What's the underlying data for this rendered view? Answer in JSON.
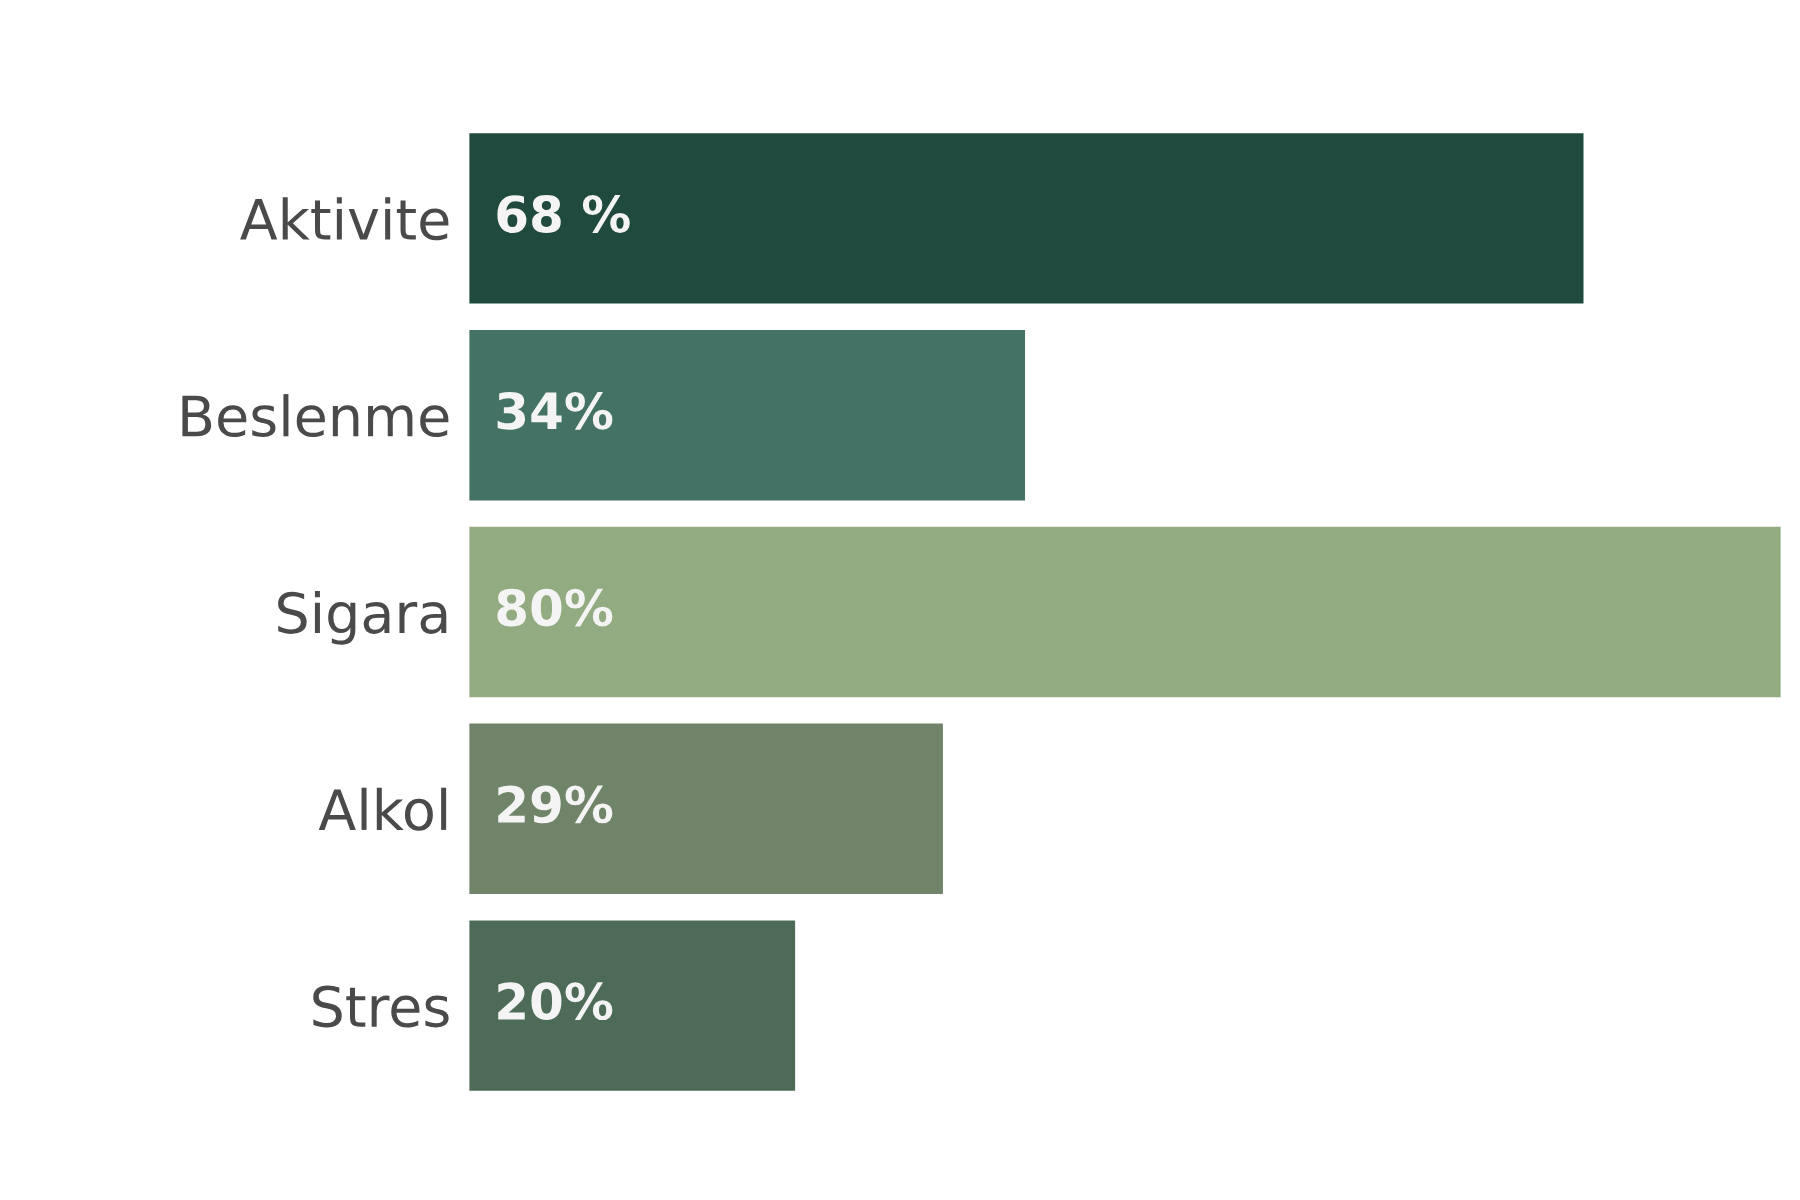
{
  "chart_data": {
    "type": "bar",
    "orientation": "horizontal",
    "categories": [
      "Aktivite",
      "Beslenme",
      "Sigara",
      "Alkol",
      "Stres"
    ],
    "values": [
      68,
      34,
      80,
      29,
      20
    ],
    "value_labels": [
      "68 %",
      "34%",
      "80%",
      "29%",
      "20%"
    ],
    "colors": [
      "#214a3e",
      "#447366",
      "#93ab80",
      "#6f8468",
      "#4e6b58"
    ],
    "grid": false,
    "legend": false
  }
}
